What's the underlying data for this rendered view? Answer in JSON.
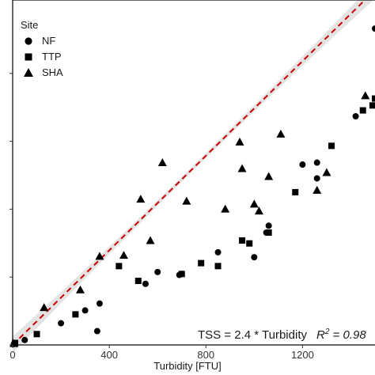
{
  "chart_data": {
    "type": "scatter",
    "xlabel": "Turbidity [FTU]",
    "ylabel": "",
    "xlim": [
      0,
      1500
    ],
    "ylim": [
      0,
      3500
    ],
    "xticks": [
      "0",
      "400",
      "800",
      "1200"
    ],
    "yticks": [
      "",
      "",
      "",
      "",
      ""
    ],
    "grid": false,
    "legend": {
      "title": "Site",
      "placement": "top-left",
      "entries": [
        "NF",
        "TTP",
        "SHA"
      ]
    },
    "series": [
      {
        "name": "NF",
        "marker": "circle",
        "points": [
          [
            5,
            10
          ],
          [
            50,
            50
          ],
          [
            200,
            220
          ],
          [
            300,
            350
          ],
          [
            350,
            140
          ],
          [
            360,
            420
          ],
          [
            550,
            620
          ],
          [
            600,
            740
          ],
          [
            690,
            710
          ],
          [
            700,
            720
          ],
          [
            850,
            940
          ],
          [
            1000,
            890
          ],
          [
            1050,
            1140
          ],
          [
            1060,
            1210
          ],
          [
            1200,
            1830
          ],
          [
            1260,
            1850
          ],
          [
            1260,
            1690
          ],
          [
            1420,
            2320
          ],
          [
            1500,
            3210
          ]
        ]
      },
      {
        "name": "TTP",
        "marker": "square",
        "points": [
          [
            10,
            20
          ],
          [
            100,
            110
          ],
          [
            260,
            310
          ],
          [
            440,
            800
          ],
          [
            520,
            650
          ],
          [
            700,
            720
          ],
          [
            780,
            830
          ],
          [
            850,
            800
          ],
          [
            950,
            1060
          ],
          [
            980,
            1030
          ],
          [
            1060,
            1140
          ],
          [
            1170,
            1550
          ],
          [
            1320,
            2020
          ],
          [
            1450,
            2380
          ],
          [
            1490,
            2430
          ],
          [
            1500,
            2500
          ]
        ]
      },
      {
        "name": "SHA",
        "marker": "triangle",
        "points": [
          [
            5,
            15
          ],
          [
            130,
            380
          ],
          [
            280,
            560
          ],
          [
            360,
            900
          ],
          [
            460,
            910
          ],
          [
            530,
            1480
          ],
          [
            570,
            1060
          ],
          [
            620,
            1850
          ],
          [
            720,
            1460
          ],
          [
            880,
            1380
          ],
          [
            940,
            2060
          ],
          [
            950,
            1790
          ],
          [
            1000,
            1430
          ],
          [
            1020,
            1360
          ],
          [
            1060,
            1710
          ],
          [
            1110,
            2140
          ],
          [
            1260,
            1570
          ],
          [
            1300,
            1750
          ],
          [
            1460,
            2530
          ]
        ]
      }
    ],
    "fit": {
      "label": "TSS = 2.4 * Turbidity",
      "r2_label": "R",
      "r2_value": " = 0.98",
      "slope": 2.4,
      "line_color": "#cc0000",
      "band_color": "#d9d9d9"
    }
  }
}
